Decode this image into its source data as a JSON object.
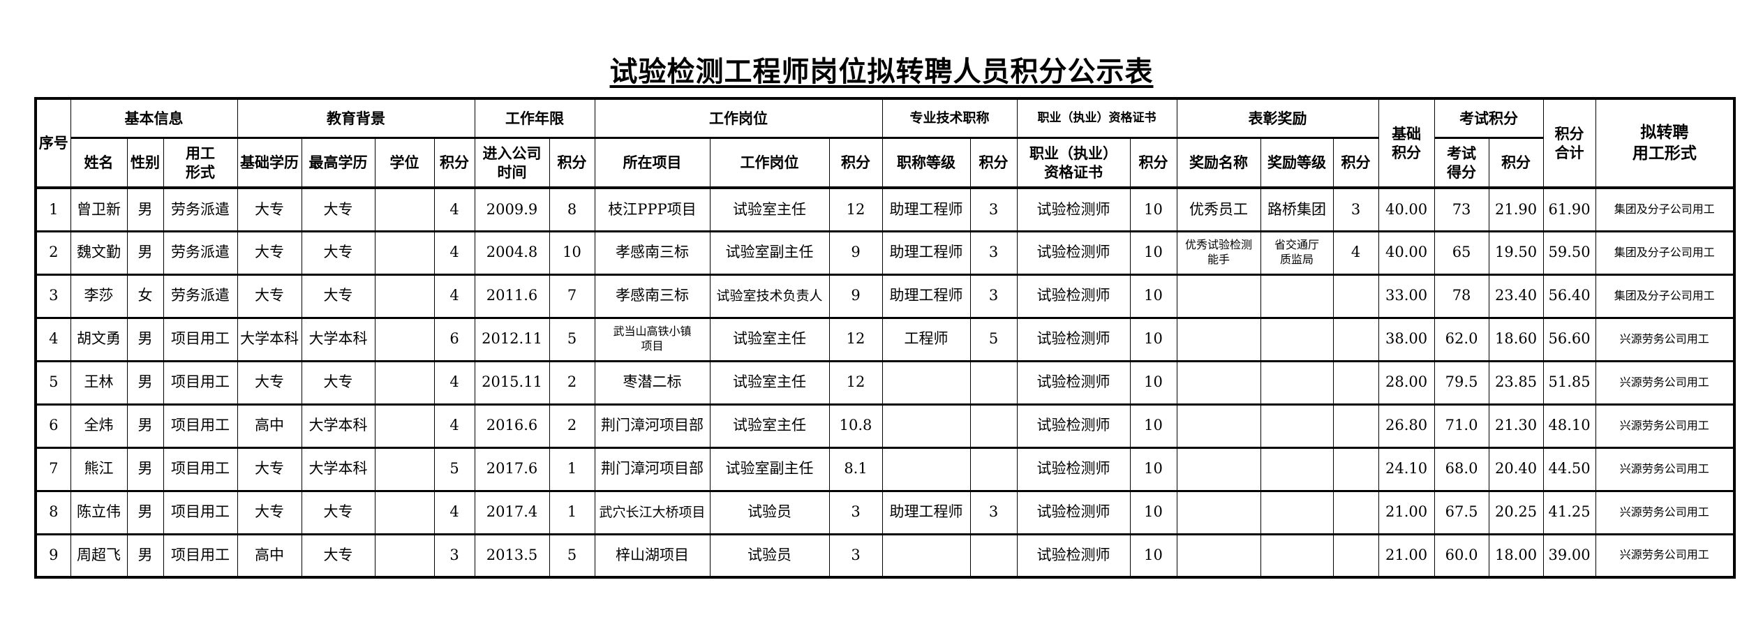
{
  "title": "试验检测工程师岗位拟转聘人员积分公示表",
  "header": {
    "seq": "序号",
    "groups": {
      "basic": "基本信息",
      "education": "教育背景",
      "years": "工作年限",
      "position": "工作岗位",
      "tech_title": "专业技术职称",
      "certificate": "职业（执业）资格证书",
      "awards": "表彰奖励",
      "base_score": "基础\n积分",
      "exam": "考试积分",
      "total": "积分\n合计",
      "employment": "拟转聘\n用工形式"
    },
    "columns": [
      "姓名",
      "性别",
      "用工\n形式",
      "基础学历",
      "最高学历",
      "学位",
      "积分",
      "进入公司\n时间",
      "积分",
      "所在项目",
      "工作岗位",
      "积分",
      "职称等级",
      "积分",
      "职业（执业）\n资格证书",
      "积分",
      "奖励名称",
      "奖励等级",
      "积分",
      "考试\n得分",
      "积分"
    ]
  },
  "rows": [
    [
      "1",
      "曾卫新",
      "男",
      "劳务派遣",
      "大专",
      "大专",
      "",
      "4",
      "2009.9",
      "8",
      "枝江PPP项目",
      "试验室主任",
      "12",
      "助理工程师",
      "3",
      "试验检测师",
      "10",
      "优秀员工",
      "路桥集团",
      "3",
      "40.00",
      "73",
      "21.90",
      "61.90",
      "集团及分子公司用工"
    ],
    [
      "2",
      "魏文勤",
      "男",
      "劳务派遣",
      "大专",
      "大专",
      "",
      "4",
      "2004.8",
      "10",
      "孝感南三标",
      "试验室副主任",
      "9",
      "助理工程师",
      "3",
      "试验检测师",
      "10",
      "优秀试验检测\n能手",
      "省交通厅\n质监局",
      "4",
      "40.00",
      "65",
      "19.50",
      "59.50",
      "集团及分子公司用工"
    ],
    [
      "3",
      "李莎",
      "女",
      "劳务派遣",
      "大专",
      "大专",
      "",
      "4",
      "2011.6",
      "7",
      "孝感南三标",
      "试验室技术负责人",
      "9",
      "助理工程师",
      "3",
      "试验检测师",
      "10",
      "",
      "",
      "",
      "33.00",
      "78",
      "23.40",
      "56.40",
      "集团及分子公司用工"
    ],
    [
      "4",
      "胡文勇",
      "男",
      "项目用工",
      "大学本科",
      "大学本科",
      "",
      "6",
      "2012.11",
      "5",
      "武当山高铁小镇\n项目",
      "试验室主任",
      "12",
      "工程师",
      "5",
      "试验检测师",
      "10",
      "",
      "",
      "",
      "38.00",
      "62.0",
      "18.60",
      "56.60",
      "兴源劳务公司用工"
    ],
    [
      "5",
      "王林",
      "男",
      "项目用工",
      "大专",
      "大专",
      "",
      "4",
      "2015.11",
      "2",
      "枣潜二标",
      "试验室主任",
      "12",
      "",
      "",
      "试验检测师",
      "10",
      "",
      "",
      "",
      "28.00",
      "79.5",
      "23.85",
      "51.85",
      "兴源劳务公司用工"
    ],
    [
      "6",
      "全炜",
      "男",
      "项目用工",
      "高中",
      "大学本科",
      "",
      "4",
      "2016.6",
      "2",
      "荆门漳河项目部",
      "试验室主任",
      "10.8",
      "",
      "",
      "试验检测师",
      "10",
      "",
      "",
      "",
      "26.80",
      "71.0",
      "21.30",
      "48.10",
      "兴源劳务公司用工"
    ],
    [
      "7",
      "熊江",
      "男",
      "项目用工",
      "大专",
      "大学本科",
      "",
      "5",
      "2017.6",
      "1",
      "荆门漳河项目部",
      "试验室副主任",
      "8.1",
      "",
      "",
      "试验检测师",
      "10",
      "",
      "",
      "",
      "24.10",
      "68.0",
      "20.40",
      "44.50",
      "兴源劳务公司用工"
    ],
    [
      "8",
      "陈立伟",
      "男",
      "项目用工",
      "大专",
      "大专",
      "",
      "4",
      "2017.4",
      "1",
      "武穴长江大桥项目",
      "试验员",
      "3",
      "助理工程师",
      "3",
      "试验检测师",
      "10",
      "",
      "",
      "",
      "21.00",
      "67.5",
      "20.25",
      "41.25",
      "兴源劳务公司用工"
    ],
    [
      "9",
      "周超飞",
      "男",
      "项目用工",
      "高中",
      "大专",
      "",
      "3",
      "2013.5",
      "5",
      "梓山湖项目",
      "试验员",
      "3",
      "",
      "",
      "试验检测师",
      "10",
      "",
      "",
      "",
      "21.00",
      "60.0",
      "18.00",
      "39.00",
      "兴源劳务公司用工"
    ]
  ]
}
